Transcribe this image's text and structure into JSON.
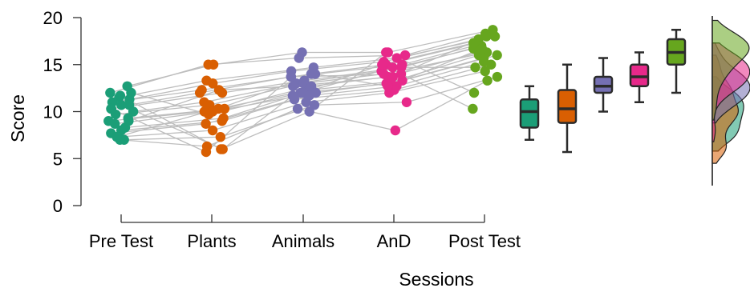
{
  "chart_data": {
    "type": "scatter",
    "xlabel": "Sessions",
    "ylabel": "Score",
    "ylim": [
      0,
      20
    ],
    "yticks": [
      0,
      5,
      10,
      15,
      20
    ],
    "categories": [
      "Pre Test",
      "Plants",
      "Animals",
      "AnD",
      "Post Test"
    ],
    "colors": [
      "#1b9e77",
      "#d95f02",
      "#7570b3",
      "#e7298a",
      "#66a61e"
    ],
    "series": [
      {
        "values": [
          12.7,
          12.0,
          11.5,
          11.3,
          11.0,
          10.7,
          10.3,
          10.0,
          9.7,
          9.3,
          9.0,
          8.7,
          8.3,
          8.0,
          7.7,
          7.3,
          7.0,
          7.0,
          11.7,
          10.3,
          9.0,
          12.0,
          7.3,
          10.7
        ]
      },
      {
        "values": [
          15.0,
          15.0,
          13.3,
          13.0,
          12.3,
          12.0,
          12.0,
          11.0,
          10.7,
          10.3,
          10.0,
          10.0,
          9.3,
          9.0,
          8.7,
          8.0,
          7.3,
          6.3,
          6.0,
          5.7,
          12.3,
          9.7,
          10.3,
          6.0
        ]
      },
      {
        "values": [
          16.3,
          15.7,
          14.7,
          14.3,
          14.0,
          13.7,
          13.3,
          13.0,
          13.0,
          12.7,
          12.3,
          12.0,
          12.0,
          11.7,
          11.3,
          11.0,
          10.7,
          10.3,
          10.0,
          13.7,
          12.7,
          12.0,
          14.0,
          11.7
        ]
      },
      {
        "values": [
          16.3,
          16.0,
          15.7,
          15.3,
          15.0,
          15.0,
          14.7,
          14.3,
          14.0,
          13.7,
          13.3,
          13.0,
          13.0,
          12.7,
          12.3,
          12.0,
          11.0,
          8.0,
          16.3,
          14.0,
          13.7,
          15.0,
          12.7,
          14.7
        ]
      },
      {
        "values": [
          18.7,
          18.3,
          18.0,
          17.7,
          17.3,
          17.0,
          17.0,
          16.7,
          16.3,
          16.3,
          16.0,
          16.0,
          15.7,
          15.3,
          15.0,
          14.3,
          13.7,
          13.3,
          12.0,
          10.3,
          18.0,
          17.3,
          16.7,
          14.7
        ]
      }
    ],
    "boxplots": [
      {
        "q1": 8.3,
        "median": 10.0,
        "q3": 11.3,
        "whisker_low": 7.0,
        "whisker_high": 12.7
      },
      {
        "q1": 8.8,
        "median": 10.3,
        "q3": 12.3,
        "whisker_low": 5.7,
        "whisker_high": 15.0
      },
      {
        "q1": 12.0,
        "median": 12.7,
        "q3": 13.7,
        "whisker_low": 10.0,
        "whisker_high": 15.7
      },
      {
        "q1": 12.7,
        "median": 13.7,
        "q3": 15.0,
        "whisker_low": 11.0,
        "whisker_high": 16.3
      },
      {
        "q1": 15.0,
        "median": 16.3,
        "q3": 17.7,
        "whisker_low": 12.0,
        "whisker_high": 18.7
      }
    ],
    "grid": false,
    "legend": "none"
  }
}
